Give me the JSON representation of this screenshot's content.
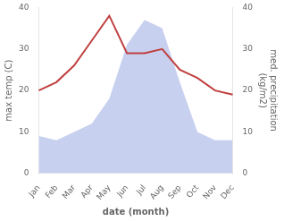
{
  "chart_data": {
    "type": "line",
    "categories": [
      "Jan",
      "Feb",
      "Mar",
      "Apr",
      "May",
      "Jun",
      "Jul",
      "Aug",
      "Sep",
      "Oct",
      "Nov",
      "Dec"
    ],
    "xlabel": "date (month)",
    "ylabel": "max temp (C)",
    "y2label": "med. precipitation\n(kg/m2)",
    "series": [
      {
        "type": "line",
        "color": "#c04040",
        "values": [
          20,
          22,
          26,
          32,
          38,
          29,
          29,
          30,
          25,
          23,
          20,
          19
        ]
      },
      {
        "type": "area",
        "axis": "y2",
        "color": "#c8d0f0",
        "values": [
          9,
          8,
          10,
          12,
          18,
          31,
          37,
          35,
          22,
          10,
          8,
          8
        ]
      }
    ],
    "ylim": [
      0,
      40
    ],
    "yticks": [
      0,
      10,
      20,
      30,
      40
    ],
    "y2lim": [
      0,
      40
    ],
    "y2ticks": [
      0,
      10,
      20,
      30,
      40
    ],
    "grid": false
  }
}
